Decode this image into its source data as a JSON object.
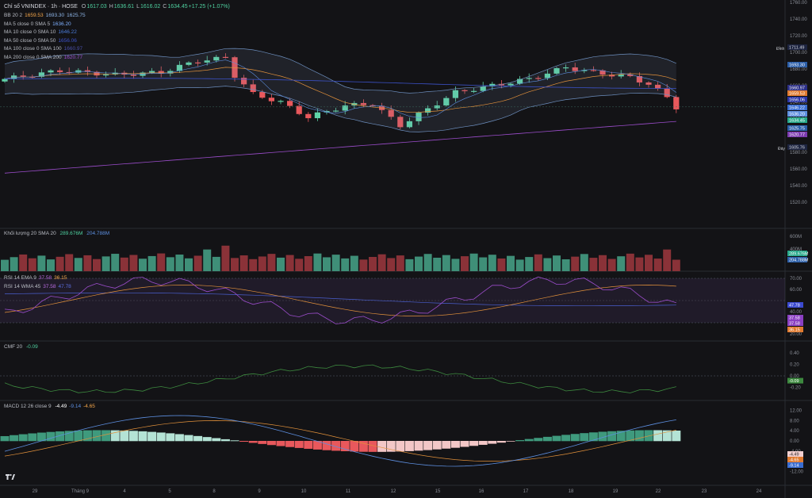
{
  "header": {
    "symbol": "Chỉ số VNINDEX · 1h · HOSE",
    "ohlc": [
      {
        "k": "O",
        "v": "1617.03",
        "color": "#4fd1a0"
      },
      {
        "k": "H",
        "v": "1636.61",
        "color": "#4fd1a0"
      },
      {
        "k": "L",
        "v": "1616.02",
        "color": "#4fd1a0"
      },
      {
        "k": "C",
        "v": "1634.45",
        "color": "#4fd1a0"
      },
      {
        "k": "",
        "v": "+17.25 (+1.07%)",
        "color": "#4fd1a0"
      }
    ]
  },
  "indicators": [
    {
      "label": "BB 20 2",
      "values": [
        {
          "v": "1659.53",
          "c": "#f4a64a"
        },
        {
          "v": "1693.30",
          "c": "#8fb6e8"
        },
        {
          "v": "1625.75",
          "c": "#8fb6e8"
        }
      ]
    },
    {
      "label": "MA 5 close 0 SMA 5",
      "values": [
        {
          "v": "1636.20",
          "c": "#7fb0ff"
        }
      ]
    },
    {
      "label": "MA 10 close 0 SMA 10",
      "values": [
        {
          "v": "1646.22",
          "c": "#4a7bd9"
        }
      ]
    },
    {
      "label": "MA 50 close 0 SMA 50",
      "values": [
        {
          "v": "1656.06",
          "c": "#3c52c9"
        }
      ]
    },
    {
      "label": "MA 100 close 0 SMA 100",
      "values": [
        {
          "v": "1660.97",
          "c": "#4a4fa8"
        }
      ]
    },
    {
      "label": "MA 200 close 0 SMA 200",
      "values": [
        {
          "v": "1620.77",
          "c": "#9c4dcc"
        }
      ]
    }
  ],
  "price_labels": {
    "dinh": "Đỉnh",
    "day": "Đáy",
    "ticks": [
      "1760.00",
      "1740.00",
      "1720.00",
      "1700.00",
      "1680.00",
      "1660.00",
      "1640.00",
      "1620.00",
      "1600.00",
      "1580.00",
      "1560.00",
      "1540.00",
      "1520.00"
    ],
    "badges": [
      {
        "v": "1711.49",
        "bg": "#1d2440",
        "fg": "#d7d9e0"
      },
      {
        "v": "1693.30",
        "bg": "#2b5ea8",
        "fg": "#ffffff"
      },
      {
        "v": "1660.97",
        "bg": "#2c2f86",
        "fg": "#ffffff"
      },
      {
        "v": "1659.53",
        "bg": "#e07a2f",
        "fg": "#ffffff"
      },
      {
        "v": "1656.06",
        "bg": "#2a35a6",
        "fg": "#ffffff"
      },
      {
        "v": "1646.22",
        "bg": "#3a6dd1",
        "fg": "#ffffff"
      },
      {
        "v": "1636.20",
        "bg": "#5d8fe0",
        "fg": "#ffffff"
      },
      {
        "v": "1634.45",
        "bg": "#26a889",
        "fg": "#ffffff"
      },
      {
        "v": "1625.75",
        "bg": "#2b5ea8",
        "fg": "#ffffff"
      },
      {
        "v": "1620.77",
        "bg": "#7c3aaf",
        "fg": "#ffffff"
      },
      {
        "v": "1605.76",
        "bg": "#1d2440",
        "fg": "#d7d9e0"
      }
    ]
  },
  "volume": {
    "label": "Khối lượng 20 SMA 20",
    "v1": "289.676M",
    "v2": "204.788M",
    "tick_top": "600M",
    "tick_mid": "400M",
    "tick_low": "200M"
  },
  "rsi": {
    "label1": "RSI 14 EMA 9",
    "label1_values": [
      {
        "v": "37.58",
        "c": "#b86be0"
      },
      {
        "v": "36.15",
        "c": "#f4a64a"
      }
    ],
    "label2": "RSI 14 WMA 45",
    "label2_values": [
      {
        "v": "37.58",
        "c": "#b86be0"
      },
      {
        "v": "47.78",
        "c": "#5a6de0"
      }
    ],
    "ticks": [
      "70.00",
      "60.00",
      "40.00",
      "30.00",
      "20.00"
    ],
    "badges": [
      {
        "v": "47.78",
        "bg": "#3b4ad0"
      },
      {
        "v": "37.58",
        "bg": "#8a3fc2"
      },
      {
        "v": "37.58",
        "bg": "#8a3fc2"
      },
      {
        "v": "36.15",
        "bg": "#e07a2f"
      }
    ]
  },
  "cmf": {
    "label": "CMF 20",
    "value": "-0.09",
    "ticks": [
      "0.40",
      "0.20",
      "0.00",
      "-0.20"
    ],
    "badge": "-0.09"
  },
  "macd": {
    "label": "MACD 12 26 close 9",
    "values": [
      {
        "v": "-4.49",
        "c": "#ffffff"
      },
      {
        "v": "-9.14",
        "c": "#5d8fe0"
      },
      {
        "v": "-4.65",
        "c": "#f4a64a"
      }
    ],
    "ticks": [
      "12.00",
      "8.00",
      "4.00",
      "0.00",
      "-4.00",
      "-8.00",
      "-12.00"
    ],
    "badges": [
      {
        "v": "-4.49",
        "bg": "#f3d0d0",
        "fg": "#222"
      },
      {
        "v": "-4.65",
        "bg": "#e07a2f",
        "fg": "#fff"
      },
      {
        "v": "-9.14",
        "bg": "#3a6dd1",
        "fg": "#fff"
      }
    ]
  },
  "time_axis": [
    "29",
    "Tháng 9",
    "4",
    "5",
    "8",
    "9",
    "10",
    "11",
    "12",
    "15",
    "16",
    "17",
    "18",
    "19",
    "22",
    "23",
    "24"
  ]
}
